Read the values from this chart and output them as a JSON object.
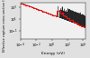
{
  "xmin": 0.0001,
  "xmax": 20000.0,
  "ymin": 0.005,
  "ymax": 5000.0,
  "xlabel": "Energy (eV)",
  "ylabel": "Effective capture cross section (barn)",
  "bg_color": "#e0e0e0",
  "plot_bg_color": "#f0f0f0",
  "black_color": "#111111",
  "red_color": "#ee1111",
  "figsize": [
    1.0,
    0.64
  ],
  "dpi": 100
}
